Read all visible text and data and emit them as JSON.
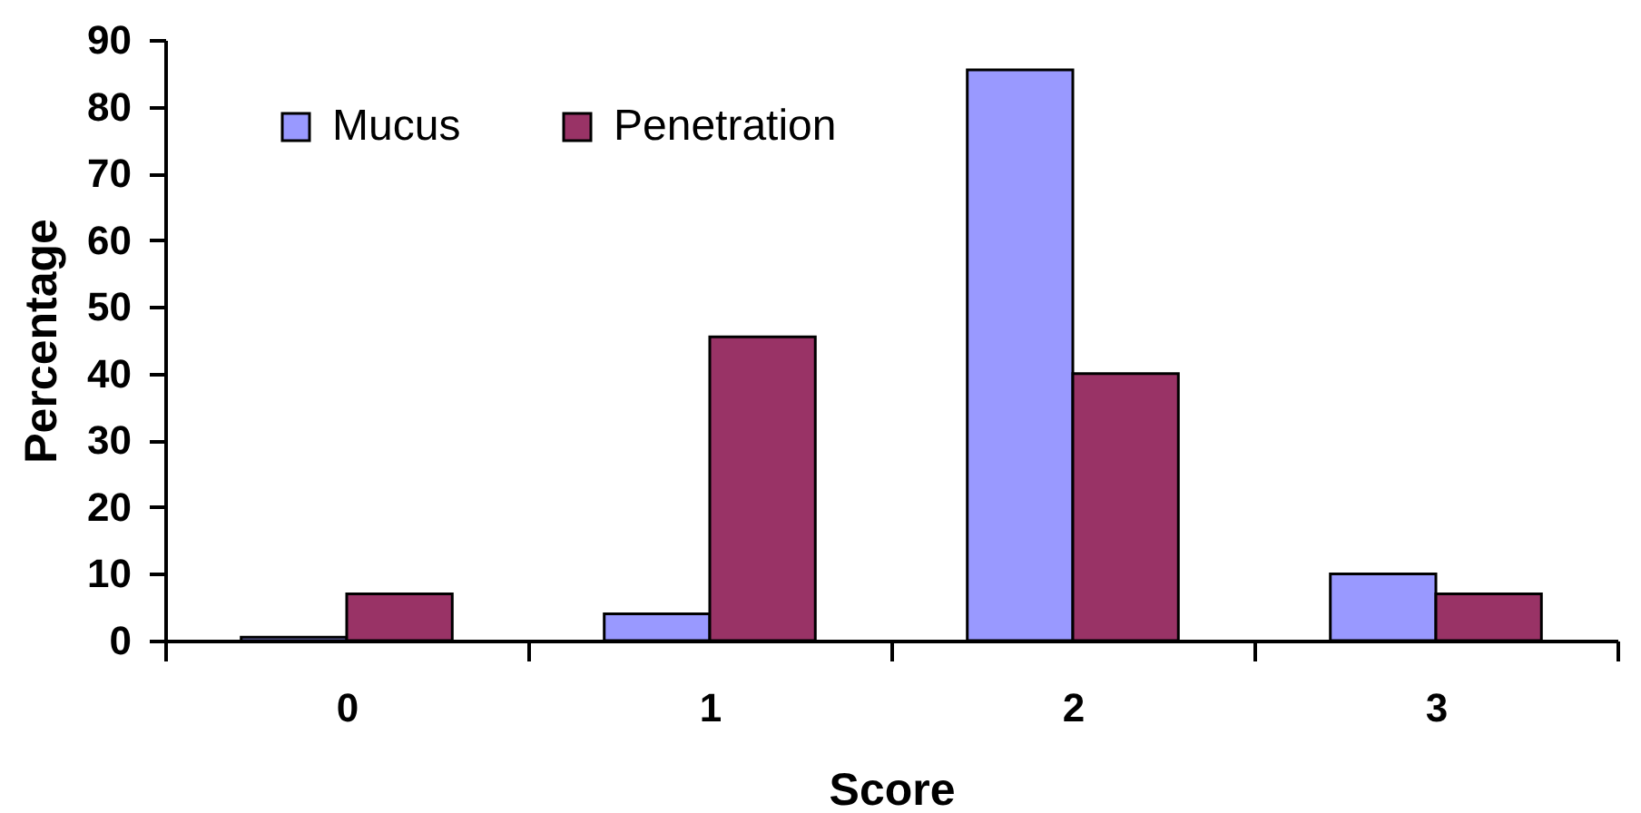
{
  "chart_data": {
    "type": "bar",
    "xlabel": "Score",
    "ylabel": "Percentage",
    "categories": [
      "0",
      "1",
      "2",
      "3"
    ],
    "series": [
      {
        "name": "Mucus",
        "color": "#9999ff",
        "values": [
          0.5,
          4,
          85.5,
          10
        ]
      },
      {
        "name": "Penetration",
        "color": "#993366",
        "values": [
          7,
          45.5,
          40,
          7
        ]
      }
    ],
    "ylim": [
      0,
      90
    ],
    "yticks": [
      0,
      10,
      20,
      30,
      40,
      50,
      60,
      70,
      80,
      90
    ],
    "legend": "top left"
  }
}
